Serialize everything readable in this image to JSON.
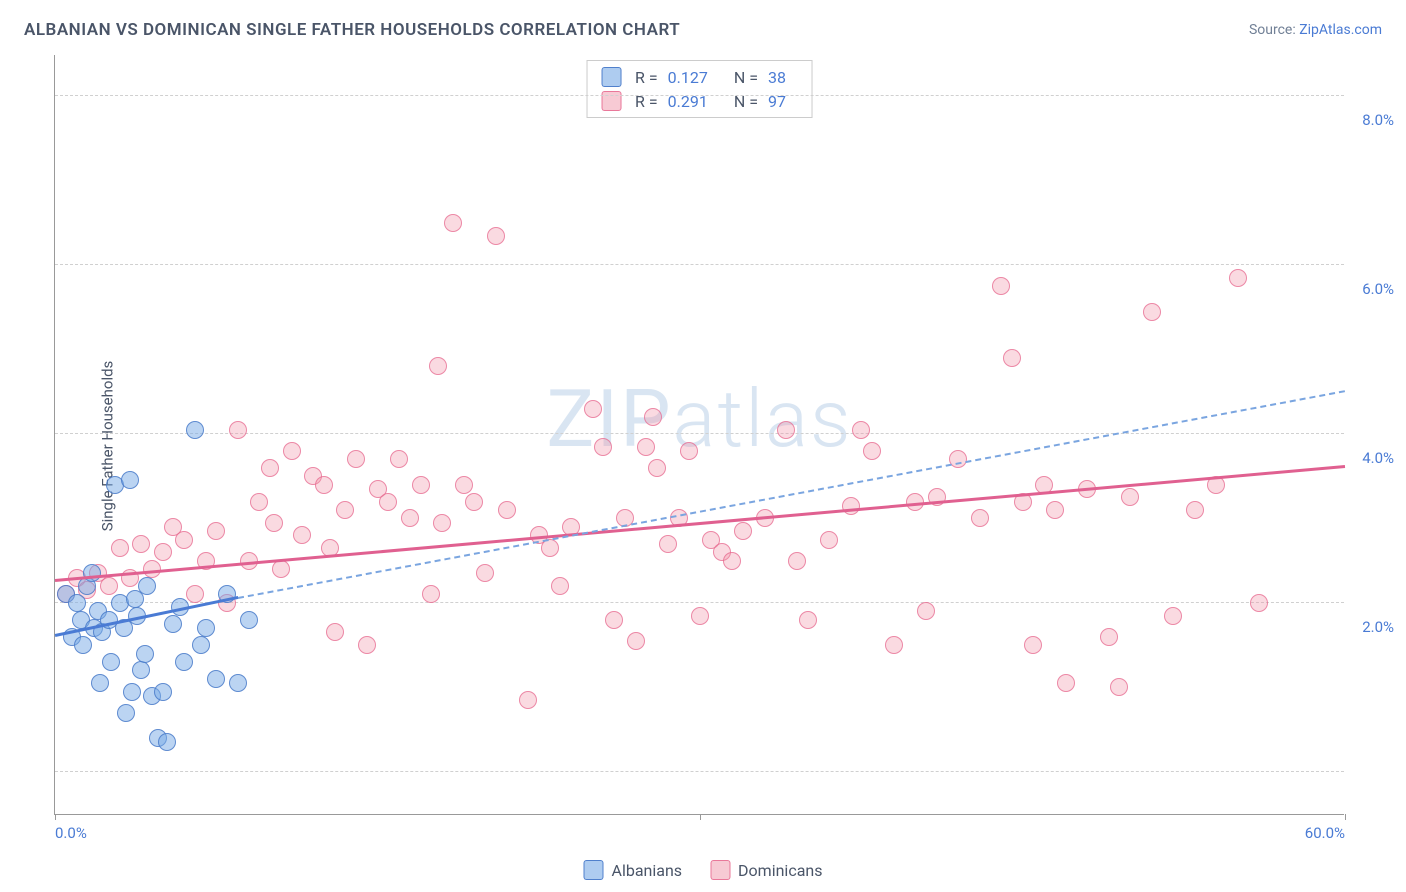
{
  "title": "ALBANIAN VS DOMINICAN SINGLE FATHER HOUSEHOLDS CORRELATION CHART",
  "source_prefix": "Source: ",
  "source_link": "ZipAtlas.com",
  "ylabel": "Single Father Households",
  "watermark": "ZIPatlas",
  "chart": {
    "type": "scatter",
    "xlim": [
      0,
      60
    ],
    "ylim": [
      0,
      9
    ],
    "x_ticks": [
      0,
      30,
      60
    ],
    "x_tick_labels": [
      "0.0%",
      "",
      "60.0%"
    ],
    "y_ticks": [
      2,
      4,
      6,
      8
    ],
    "y_tick_labels": [
      "2.0%",
      "4.0%",
      "6.0%",
      "8.0%"
    ],
    "grid_lines_y": [
      0.5,
      2.5,
      4.5,
      6.5,
      8.5
    ],
    "background_color": "#ffffff",
    "grid_color": "#d0d0d0",
    "marker_size": 18
  },
  "series": {
    "albanians": {
      "label": "Albanians",
      "color_fill": "rgba(120,170,230,0.5)",
      "color_stroke": "rgba(70,120,200,0.8)",
      "R": "0.127",
      "N": "38",
      "trend_solid": {
        "x1": 0,
        "y1": 2.1,
        "x2": 8.5,
        "y2": 2.55
      },
      "trend_dash": {
        "x1": 8.5,
        "y1": 2.55,
        "x2": 60,
        "y2": 5.0
      },
      "points": [
        [
          0.5,
          2.6
        ],
        [
          1.0,
          2.5
        ],
        [
          1.2,
          2.3
        ],
        [
          1.5,
          2.7
        ],
        [
          2.0,
          2.4
        ],
        [
          1.8,
          2.2
        ],
        [
          0.8,
          2.1
        ],
        [
          1.3,
          2.0
        ],
        [
          2.2,
          2.15
        ],
        [
          2.5,
          2.3
        ],
        [
          3.0,
          2.5
        ],
        [
          3.2,
          2.2
        ],
        [
          2.8,
          3.9
        ],
        [
          3.5,
          3.95
        ],
        [
          3.8,
          2.35
        ],
        [
          4.0,
          1.7
        ],
        [
          4.2,
          1.9
        ],
        [
          4.5,
          1.4
        ],
        [
          4.8,
          0.9
        ],
        [
          5.0,
          1.45
        ],
        [
          5.2,
          0.85
        ],
        [
          2.6,
          1.8
        ],
        [
          3.3,
          1.2
        ],
        [
          3.6,
          1.45
        ],
        [
          5.5,
          2.25
        ],
        [
          6.0,
          1.8
        ],
        [
          6.5,
          4.55
        ],
        [
          7.0,
          2.2
        ],
        [
          7.5,
          1.6
        ],
        [
          8.0,
          2.6
        ],
        [
          8.5,
          1.55
        ],
        [
          9.0,
          2.3
        ],
        [
          1.7,
          2.85
        ],
        [
          2.1,
          1.55
        ],
        [
          3.7,
          2.55
        ],
        [
          4.3,
          2.7
        ],
        [
          5.8,
          2.45
        ],
        [
          6.8,
          2.0
        ]
      ]
    },
    "dominicans": {
      "label": "Dominicans",
      "color_fill": "rgba(240,150,170,0.35)",
      "color_stroke": "rgba(230,100,140,0.7)",
      "R": "0.291",
      "N": "97",
      "trend_solid": {
        "x1": 0,
        "y1": 2.75,
        "x2": 60,
        "y2": 4.1
      },
      "points": [
        [
          0.5,
          2.6
        ],
        [
          1.0,
          2.8
        ],
        [
          1.5,
          2.65
        ],
        [
          2.0,
          2.85
        ],
        [
          2.5,
          2.7
        ],
        [
          3.0,
          3.15
        ],
        [
          3.5,
          2.8
        ],
        [
          4.0,
          3.2
        ],
        [
          4.5,
          2.9
        ],
        [
          5.0,
          3.1
        ],
        [
          5.5,
          3.4
        ],
        [
          6.0,
          3.25
        ],
        [
          6.5,
          2.6
        ],
        [
          7.0,
          3.0
        ],
        [
          7.5,
          3.35
        ],
        [
          8.0,
          2.5
        ],
        [
          8.5,
          4.55
        ],
        [
          9.0,
          3.0
        ],
        [
          9.5,
          3.7
        ],
        [
          10.0,
          4.1
        ],
        [
          10.5,
          2.9
        ],
        [
          11.0,
          4.3
        ],
        [
          11.5,
          3.3
        ],
        [
          12.0,
          4.0
        ],
        [
          12.5,
          3.9
        ],
        [
          13.0,
          2.15
        ],
        [
          13.5,
          3.6
        ],
        [
          14.0,
          4.2
        ],
        [
          14.5,
          2.0
        ],
        [
          15.0,
          3.85
        ],
        [
          15.5,
          3.7
        ],
        [
          16.0,
          4.2
        ],
        [
          16.5,
          3.5
        ],
        [
          17.0,
          3.9
        ],
        [
          17.5,
          2.6
        ],
        [
          18.0,
          3.45
        ],
        [
          18.5,
          7.0
        ],
        [
          19.0,
          3.9
        ],
        [
          19.5,
          3.7
        ],
        [
          20.0,
          2.85
        ],
        [
          20.5,
          6.85
        ],
        [
          21.0,
          3.6
        ],
        [
          22.0,
          1.35
        ],
        [
          22.5,
          3.3
        ],
        [
          23.0,
          3.15
        ],
        [
          23.5,
          2.7
        ],
        [
          24.0,
          3.4
        ],
        [
          25.0,
          4.8
        ],
        [
          25.5,
          4.35
        ],
        [
          26.0,
          2.3
        ],
        [
          26.5,
          3.5
        ],
        [
          27.0,
          2.05
        ],
        [
          27.5,
          4.35
        ],
        [
          28.0,
          4.1
        ],
        [
          28.5,
          3.2
        ],
        [
          29.0,
          3.5
        ],
        [
          29.5,
          4.3
        ],
        [
          30.0,
          2.35
        ],
        [
          30.5,
          3.25
        ],
        [
          31.0,
          3.1
        ],
        [
          31.5,
          3.0
        ],
        [
          32.0,
          3.35
        ],
        [
          33.0,
          3.5
        ],
        [
          34.0,
          4.55
        ],
        [
          34.5,
          3.0
        ],
        [
          35.0,
          2.3
        ],
        [
          36.0,
          3.25
        ],
        [
          37.0,
          3.65
        ],
        [
          37.5,
          4.55
        ],
        [
          38.0,
          4.3
        ],
        [
          39.0,
          2.0
        ],
        [
          40.0,
          3.7
        ],
        [
          40.5,
          2.4
        ],
        [
          41.0,
          3.75
        ],
        [
          42.0,
          4.2
        ],
        [
          43.0,
          3.5
        ],
        [
          44.0,
          6.25
        ],
        [
          44.5,
          5.4
        ],
        [
          45.0,
          3.7
        ],
        [
          45.5,
          2.0
        ],
        [
          46.0,
          3.9
        ],
        [
          46.5,
          3.6
        ],
        [
          47.0,
          1.55
        ],
        [
          48.0,
          3.85
        ],
        [
          49.0,
          2.1
        ],
        [
          49.5,
          1.5
        ],
        [
          50.0,
          3.75
        ],
        [
          51.0,
          5.95
        ],
        [
          52.0,
          2.35
        ],
        [
          53.0,
          3.6
        ],
        [
          54.0,
          3.9
        ],
        [
          55.0,
          6.35
        ],
        [
          56.0,
          2.5
        ],
        [
          10.2,
          3.45
        ],
        [
          12.8,
          3.15
        ],
        [
          17.8,
          5.3
        ],
        [
          27.8,
          4.7
        ]
      ]
    }
  },
  "stats_labels": {
    "R": "R =",
    "N": "N ="
  },
  "legend": {
    "item1": "Albanians",
    "item2": "Dominicans"
  }
}
